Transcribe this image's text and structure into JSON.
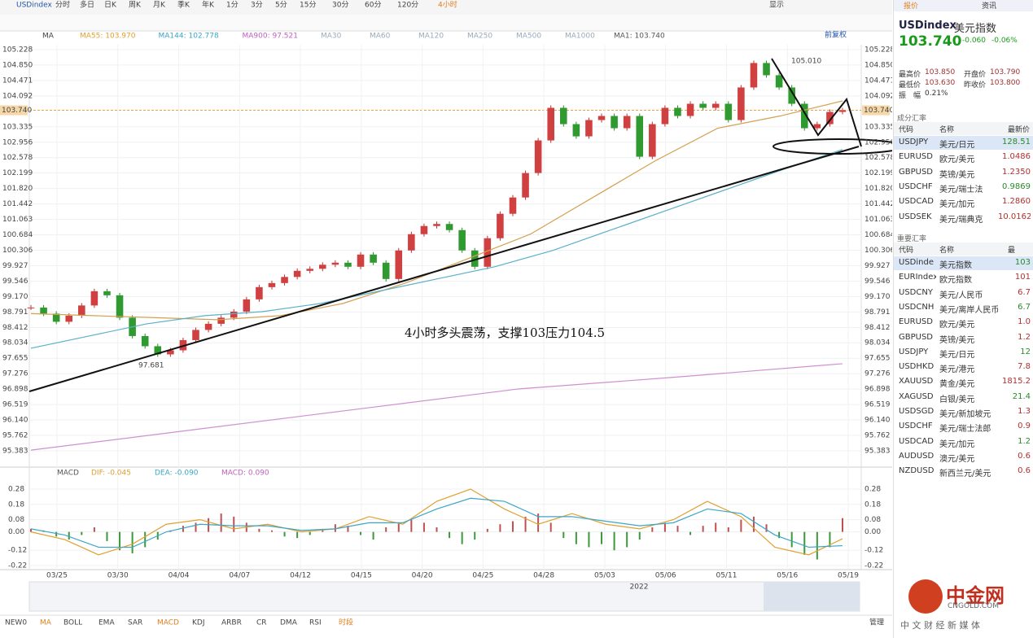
{
  "toolbar": {
    "symbol": "USDindex",
    "periods": [
      "分时",
      "多日",
      "日K",
      "周K",
      "月K",
      "季K",
      "年K",
      "1分",
      "3分",
      "5分",
      "15分",
      "30分",
      "60分",
      "120分",
      "4小时"
    ],
    "display": "显示"
  },
  "main_chart": {
    "type": "candlestick",
    "indicator": "MA",
    "ma_labels": [
      "MA55: 103.970",
      "MA144: 102.778",
      "MA900: 97.521",
      "MA30",
      "MA60",
      "MA120",
      "MA250",
      "MA500",
      "MA1000",
      "MA1: 103.740"
    ],
    "ma_colors": [
      "#e0a030",
      "#3aa6c8",
      "#c060c0",
      "#9ab",
      "#9ab",
      "#9ab",
      "#9ab",
      "#9ab",
      "#9ab",
      "#555"
    ],
    "adjust": "前复权",
    "ylim": [
      95.383,
      105.228
    ],
    "yticks": [
      {
        "value": 105.228,
        "label": "105.228"
      },
      {
        "value": 104.85,
        "label": "104.850"
      },
      {
        "value": 104.471,
        "label": "104.471"
      },
      {
        "value": 104.092,
        "label": "104.092"
      },
      {
        "value": 103.335,
        "label": "103.335"
      },
      {
        "value": 102.956,
        "label": "102.956"
      },
      {
        "value": 102.578,
        "label": "102.578"
      },
      {
        "value": 102.199,
        "label": "102.199"
      },
      {
        "value": 101.82,
        "label": "101.820"
      },
      {
        "value": 101.442,
        "label": "101.442"
      },
      {
        "value": 101.063,
        "label": "101.063"
      },
      {
        "value": 100.684,
        "label": "100.684"
      },
      {
        "value": 100.306,
        "label": "100.306"
      },
      {
        "value": 99.927,
        "label": "99.927"
      },
      {
        "value": 99.546,
        "label": "99.546"
      },
      {
        "value": 99.17,
        "label": "99.170"
      },
      {
        "value": 98.791,
        "label": "98.791"
      },
      {
        "value": 98.412,
        "label": "98.412"
      },
      {
        "value": 98.034,
        "label": "98.034"
      },
      {
        "value": 97.655,
        "label": "97.655"
      },
      {
        "value": 97.276,
        "label": "97.276"
      },
      {
        "value": 96.898,
        "label": "96.898"
      },
      {
        "value": 96.519,
        "label": "96.519"
      },
      {
        "value": 96.14,
        "label": "96.140"
      },
      {
        "value": 95.762,
        "label": "95.762"
      },
      {
        "value": 95.383,
        "label": "95.383"
      }
    ],
    "current": {
      "value": 103.74,
      "label": "103.740"
    },
    "high": {
      "value": 105.01,
      "label": "105.010"
    },
    "low": {
      "value": 97.681,
      "label": "97.681"
    },
    "annotation": "4小时多头震荡，支撑103压力104.5",
    "closes": [
      98.9,
      98.75,
      98.55,
      98.7,
      98.95,
      99.3,
      99.2,
      98.65,
      98.2,
      97.95,
      97.75,
      97.85,
      98.1,
      98.35,
      98.5,
      98.65,
      98.8,
      99.1,
      99.4,
      99.5,
      99.65,
      99.8,
      99.85,
      99.95,
      100.0,
      99.9,
      100.2,
      100.0,
      99.6,
      100.3,
      100.7,
      100.9,
      100.95,
      100.8,
      100.3,
      99.9,
      100.6,
      101.2,
      101.6,
      102.2,
      103.0,
      103.8,
      103.4,
      103.1,
      103.5,
      103.6,
      103.3,
      103.6,
      102.6,
      103.4,
      103.8,
      103.6,
      103.9,
      103.8,
      103.9,
      103.5,
      104.3,
      104.9,
      104.6,
      104.3,
      103.9,
      103.3,
      103.4,
      103.7,
      103.74
    ],
    "ma_series": [
      {
        "name": "MA55",
        "color": "#d4a050",
        "values": [
          98.75,
          98.7,
          98.65,
          98.6,
          98.7,
          99.0,
          99.5,
          100.1,
          100.7,
          101.6,
          102.5,
          103.3,
          103.6,
          103.97
        ]
      },
      {
        "name": "MA144",
        "color": "#5ab0c8",
        "values": [
          97.9,
          98.2,
          98.5,
          98.7,
          98.8,
          99.0,
          99.3,
          99.6,
          99.9,
          100.3,
          100.8,
          101.3,
          101.8,
          102.3,
          102.778
        ]
      },
      {
        "name": "MA900",
        "color": "#d090d0",
        "values": [
          95.4,
          95.9,
          96.4,
          96.9,
          97.2,
          97.521
        ]
      }
    ]
  },
  "macd": {
    "labels": [
      "MACD",
      "DIF: -0.045",
      "DEA: -0.090",
      "MACD: 0.090"
    ],
    "label_colors": [
      "#555",
      "#e0a030",
      "#3aa6c8",
      "#c060c0"
    ],
    "ylim": [
      -0.22,
      0.28
    ],
    "yticks": [
      0.28,
      0.18,
      0.08,
      {
        "value": 0,
        "label": "0.00"
      },
      -0.12,
      -0.22
    ],
    "hist": [
      0.02,
      0.01,
      -0.03,
      -0.05,
      -0.02,
      0.03,
      -0.06,
      -0.12,
      -0.14,
      -0.1,
      -0.05,
      0.01,
      0.04,
      0.06,
      0.09,
      0.12,
      0.1,
      0.06,
      0.02,
      0.01,
      -0.03,
      -0.04,
      -0.02,
      0.02,
      0.05,
      0.04,
      -0.02,
      -0.05,
      0.03,
      0.06,
      0.08,
      0.06,
      0.03,
      -0.04,
      -0.08,
      -0.05,
      0.02,
      0.05,
      0.07,
      0.1,
      0.12,
      0.06,
      -0.04,
      -0.08,
      -0.1,
      -0.08,
      -0.12,
      -0.1,
      -0.05,
      0.03,
      0.06,
      0.04,
      -0.02,
      0.04,
      0.06,
      0.03,
      0.08,
      0.1,
      0.05,
      -0.04,
      -0.1,
      -0.15,
      -0.18,
      -0.1,
      0.09
    ],
    "dif": [
      0.0,
      -0.05,
      -0.15,
      -0.08,
      0.05,
      0.08,
      0.02,
      0.05,
      0.0,
      0.02,
      0.1,
      0.05,
      0.2,
      0.28,
      0.15,
      0.05,
      0.12,
      0.05,
      0.02,
      0.08,
      0.2,
      0.1,
      -0.1,
      -0.15,
      -0.045
    ],
    "dea": [
      0.02,
      -0.02,
      -0.1,
      -0.1,
      0.0,
      0.05,
      0.04,
      0.04,
      0.01,
      0.02,
      0.06,
      0.06,
      0.15,
      0.22,
      0.2,
      0.1,
      0.1,
      0.07,
      0.04,
      0.06,
      0.15,
      0.12,
      -0.02,
      -0.1,
      -0.09
    ]
  },
  "xaxis": {
    "dates": [
      "03/25",
      "03/30",
      "04/04",
      "04/07",
      "04/12",
      "04/15",
      "04/20",
      "04/25",
      "04/28",
      "05/03",
      "05/06",
      "05/11",
      "05/16",
      "05/19"
    ],
    "year": "2022"
  },
  "bottom_tabs": [
    "NEW0",
    "MA",
    "BOLL",
    "EMA",
    "SAR",
    "MACD",
    "KDJ",
    "ARBR",
    "CR",
    "DMA",
    "RSI",
    "时段"
  ],
  "manage": "管理",
  "panel": {
    "tabs": [
      "报价",
      "资讯"
    ],
    "symbol": "USDindex",
    "name": "美元指数",
    "price": "103.740",
    "change": "-0.060",
    "pct": "-0.06%",
    "stats": [
      [
        "最高价",
        "103.850"
      ],
      [
        "开盘价",
        "103.790"
      ],
      [
        "最低价",
        "103.630"
      ],
      [
        "昨收价",
        "103.800"
      ],
      [
        "振　幅",
        "0.21%"
      ]
    ],
    "section1": "成分汇率",
    "header": [
      "代码",
      "名称",
      "最新价"
    ],
    "rows1": [
      [
        "USDJPY",
        "美元/日元",
        "128.51"
      ],
      [
        "EURUSD",
        "欧元/美元",
        "1.0486"
      ],
      [
        "GBPUSD",
        "英镑/美元",
        "1.2350"
      ],
      [
        "USDCHF",
        "美元/瑞士法",
        "0.9869"
      ],
      [
        "USDCAD",
        "美元/加元",
        "1.2860"
      ],
      [
        "USDSEK",
        "美元/瑞典克",
        "10.0162"
      ]
    ],
    "section2": "重要汇率",
    "header2": [
      "代码",
      "名称",
      "最"
    ],
    "rows2": [
      [
        "USDinde",
        "美元指数",
        "103"
      ],
      [
        "EURIndex",
        "欧元指数",
        "101"
      ],
      [
        "USDCNY",
        "美元/人民币",
        "6.7"
      ],
      [
        "USDCNH",
        "美元/离岸人民币",
        "6.7"
      ],
      [
        "EURUSD",
        "欧元/美元",
        "1.0"
      ],
      [
        "GBPUSD",
        "英镑/美元",
        "1.2"
      ],
      [
        "USDJPY",
        "美元/日元",
        "12"
      ],
      [
        "USDHKD",
        "美元/港元",
        "7.8"
      ],
      [
        "XAUUSD",
        "黄金/美元",
        "1815.2"
      ],
      [
        "XAGUSD",
        "白银/美元",
        "21.4"
      ],
      [
        "USDSGD",
        "美元/新加坡元",
        "1.3"
      ],
      [
        "USDCHF",
        "美元/瑞士法郎",
        "0.9"
      ],
      [
        "USDCAD",
        "美元/加元",
        "1.2"
      ],
      [
        "AUDUSD",
        "澳元/美元",
        "0.6"
      ],
      [
        "NZDUSD",
        "新西兰元/美元",
        "0.6"
      ]
    ]
  },
  "logo": {
    "name": "中金网",
    "domain": "CNGOLD.COM",
    "slogan": "中 文 财 经 新 媒 体"
  }
}
